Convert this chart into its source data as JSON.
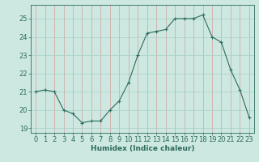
{
  "x": [
    0,
    1,
    2,
    3,
    4,
    5,
    6,
    7,
    8,
    9,
    10,
    11,
    12,
    13,
    14,
    15,
    16,
    17,
    18,
    19,
    20,
    21,
    22,
    23
  ],
  "y": [
    21.0,
    21.1,
    21.0,
    20.0,
    19.8,
    19.3,
    19.4,
    19.4,
    20.0,
    20.5,
    21.5,
    23.0,
    24.2,
    24.3,
    24.4,
    25.0,
    25.0,
    25.0,
    25.2,
    24.0,
    23.7,
    22.2,
    21.1,
    19.6
  ],
  "line_color": "#2e6b5e",
  "marker": "+",
  "marker_size": 3,
  "bg_color": "#cce8e0",
  "hgrid_color": "#a8cfc7",
  "vgrid_color": "#d4a0a0",
  "axis_color": "#2e6b5e",
  "xlabel": "Humidex (Indice chaleur)",
  "ylim": [
    18.75,
    25.75
  ],
  "yticks": [
    19,
    20,
    21,
    22,
    23,
    24,
    25
  ],
  "xtick_labels": [
    "0",
    "1",
    "2",
    "3",
    "4",
    "5",
    "6",
    "7",
    "8",
    "9",
    "10",
    "11",
    "12",
    "13",
    "14",
    "15",
    "16",
    "17",
    "18",
    "19",
    "20",
    "21",
    "22",
    "23"
  ],
  "xlabel_fontsize": 6.5,
  "tick_fontsize": 6.0
}
